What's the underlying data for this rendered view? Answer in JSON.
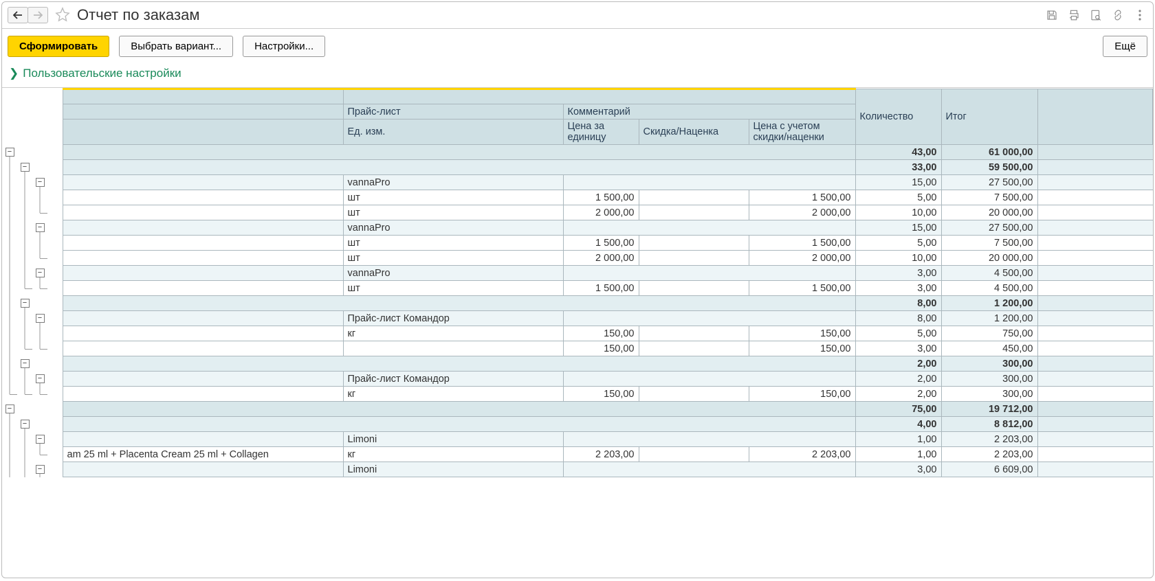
{
  "title": "Отчет по заказам",
  "buttons": {
    "form": "Сформировать",
    "variant": "Выбрать вариант...",
    "settings": "Настройки...",
    "more": "Ещё"
  },
  "section": "Пользовательские настройки",
  "headers": {
    "qty": "Количество",
    "total": "Итог",
    "pricelist": "Прайс-лист",
    "comment": "Комментарий",
    "unit": "Ед. изм.",
    "unit_price": "Цена за единицу",
    "discount": "Скидка/Наценка",
    "price_disc": "Цена с учетом скидки/наценки"
  },
  "rows": [
    {
      "lvl": 0,
      "tree": [
        1,
        0,
        0,
        0
      ],
      "name": "",
      "c1": "",
      "c2": "",
      "c3": "",
      "c4": "",
      "qty": "43,00",
      "total": "61 000,00"
    },
    {
      "lvl": 1,
      "tree": [
        2,
        1,
        0,
        0
      ],
      "name": "",
      "c1": "",
      "c2": "",
      "c3": "",
      "c4": "",
      "qty": "33,00",
      "total": "59 500,00"
    },
    {
      "lvl": 2,
      "tree": [
        2,
        2,
        1,
        0
      ],
      "name": "",
      "c1": "vannaPro",
      "c2": "",
      "c3": "",
      "c4": "",
      "qty": "15,00",
      "total": "27 500,00"
    },
    {
      "lvl": 3,
      "tree": [
        2,
        2,
        2,
        0
      ],
      "name": "",
      "c1": "шт",
      "c2": "1 500,00",
      "c3": "",
      "c4": "1 500,00",
      "qty": "5,00",
      "total": "7 500,00"
    },
    {
      "lvl": 3,
      "tree": [
        2,
        2,
        3,
        0
      ],
      "name": "",
      "c1": "шт",
      "c2": "2 000,00",
      "c3": "",
      "c4": "2 000,00",
      "qty": "10,00",
      "total": "20 000,00"
    },
    {
      "lvl": 2,
      "tree": [
        2,
        2,
        1,
        0
      ],
      "name": "",
      "c1": "vannaPro",
      "c2": "",
      "c3": "",
      "c4": "",
      "qty": "15,00",
      "total": "27 500,00"
    },
    {
      "lvl": 3,
      "tree": [
        2,
        2,
        2,
        0
      ],
      "name": "",
      "c1": "шт",
      "c2": "1 500,00",
      "c3": "",
      "c4": "1 500,00",
      "qty": "5,00",
      "total": "7 500,00"
    },
    {
      "lvl": 3,
      "tree": [
        2,
        2,
        3,
        0
      ],
      "name": "",
      "c1": "шт",
      "c2": "2 000,00",
      "c3": "",
      "c4": "2 000,00",
      "qty": "10,00",
      "total": "20 000,00"
    },
    {
      "lvl": 2,
      "tree": [
        2,
        2,
        1,
        0
      ],
      "name": "",
      "c1": "vannaPro",
      "c2": "",
      "c3": "",
      "c4": "",
      "qty": "3,00",
      "total": "4 500,00"
    },
    {
      "lvl": 3,
      "tree": [
        2,
        3,
        3,
        0
      ],
      "name": "",
      "c1": "шт",
      "c2": "1 500,00",
      "c3": "",
      "c4": "1 500,00",
      "qty": "3,00",
      "total": "4 500,00"
    },
    {
      "lvl": 1,
      "tree": [
        2,
        1,
        0,
        0
      ],
      "name": "",
      "c1": "",
      "c2": "",
      "c3": "",
      "c4": "",
      "qty": "8,00",
      "total": "1 200,00"
    },
    {
      "lvl": 2,
      "tree": [
        2,
        2,
        1,
        0
      ],
      "name": "",
      "c1": "Прайс-лист Командор",
      "c2": "",
      "c3": "",
      "c4": "",
      "qty": "8,00",
      "total": "1 200,00"
    },
    {
      "lvl": 3,
      "tree": [
        2,
        2,
        2,
        0
      ],
      "name": "",
      "c1": "кг",
      "c2": "150,00",
      "c3": "",
      "c4": "150,00",
      "qty": "5,00",
      "total": "750,00"
    },
    {
      "lvl": 3,
      "tree": [
        2,
        3,
        3,
        0
      ],
      "name": "",
      "c1": "",
      "c2": "150,00",
      "c3": "",
      "c4": "150,00",
      "qty": "3,00",
      "total": "450,00"
    },
    {
      "lvl": 1,
      "tree": [
        2,
        1,
        0,
        0
      ],
      "name": "",
      "c1": "",
      "c2": "",
      "c3": "",
      "c4": "",
      "qty": "2,00",
      "total": "300,00"
    },
    {
      "lvl": 2,
      "tree": [
        2,
        2,
        1,
        0
      ],
      "name": "",
      "c1": "Прайс-лист Командор",
      "c2": "",
      "c3": "",
      "c4": "",
      "qty": "2,00",
      "total": "300,00"
    },
    {
      "lvl": 3,
      "tree": [
        3,
        3,
        3,
        0
      ],
      "name": "",
      "c1": "кг",
      "c2": "150,00",
      "c3": "",
      "c4": "150,00",
      "qty": "2,00",
      "total": "300,00"
    },
    {
      "lvl": 0,
      "tree": [
        1,
        0,
        0,
        0
      ],
      "name": "",
      "c1": "",
      "c2": "",
      "c3": "",
      "c4": "",
      "qty": "75,00",
      "total": "19 712,00"
    },
    {
      "lvl": 1,
      "tree": [
        2,
        1,
        0,
        0
      ],
      "name": "",
      "c1": "",
      "c2": "",
      "c3": "",
      "c4": "",
      "qty": "4,00",
      "total": "8 812,00"
    },
    {
      "lvl": 2,
      "tree": [
        2,
        2,
        1,
        0
      ],
      "name": "",
      "c1": "Limoni",
      "c2": "",
      "c3": "",
      "c4": "",
      "qty": "1,00",
      "total": "2 203,00"
    },
    {
      "lvl": 3,
      "tree": [
        2,
        2,
        3,
        0
      ],
      "name": "am 25 ml + Placenta Cream 25 ml + Collagen",
      "c1": "кг",
      "c2": "2 203,00",
      "c3": "",
      "c4": "2 203,00",
      "qty": "1,00",
      "total": "2 203,00"
    },
    {
      "lvl": 2,
      "tree": [
        2,
        2,
        1,
        0
      ],
      "name": "",
      "c1": "Limoni",
      "c2": "",
      "c3": "",
      "c4": "",
      "qty": "3,00",
      "total": "6 609,00"
    }
  ],
  "colors": {
    "accent": "#ffd400",
    "header_bg": "#cfe0e4",
    "lvl0_bg": "#d8e7ea",
    "lvl1_bg": "#e2eef1",
    "lvl2_bg": "#edf5f7",
    "lvl3_bg": "#ffffff",
    "section_color": "#1a8a5a"
  }
}
